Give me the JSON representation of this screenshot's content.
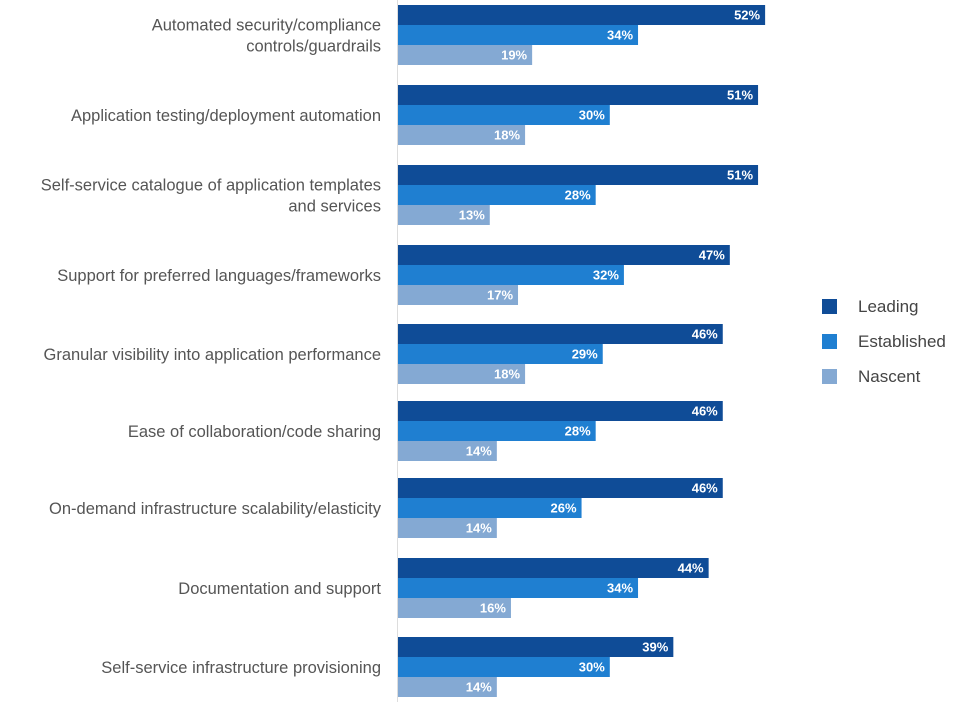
{
  "chart_data": {
    "type": "bar",
    "orientation": "horizontal",
    "title": "",
    "xlabel": "",
    "ylabel": "",
    "xlim": [
      0,
      60
    ],
    "grid": false,
    "legend_position": "right",
    "value_suffix": "%",
    "categories": [
      [
        "Automated security/compliance",
        "controls/guardrails"
      ],
      [
        "Application testing/deployment automation"
      ],
      [
        "Self-service catalogue of application templates",
        "and services"
      ],
      [
        "Support for preferred languages/frameworks"
      ],
      [
        "Granular visibility into application performance"
      ],
      [
        "Ease of collaboration/code sharing"
      ],
      [
        "On-demand infrastructure scalability/elasticity"
      ],
      [
        "Documentation and support"
      ],
      [
        "Self-service infrastructure provisioning"
      ]
    ],
    "series": [
      {
        "name": "Leading",
        "color": "#0f4c97",
        "values": [
          52,
          51,
          51,
          47,
          46,
          46,
          46,
          44,
          39
        ]
      },
      {
        "name": "Established",
        "color": "#1f7fd1",
        "values": [
          34,
          30,
          28,
          32,
          29,
          28,
          26,
          34,
          30
        ]
      },
      {
        "name": "Nascent",
        "color": "#84a9d3",
        "values": [
          19,
          18,
          13,
          17,
          18,
          14,
          14,
          16,
          14
        ]
      }
    ]
  }
}
